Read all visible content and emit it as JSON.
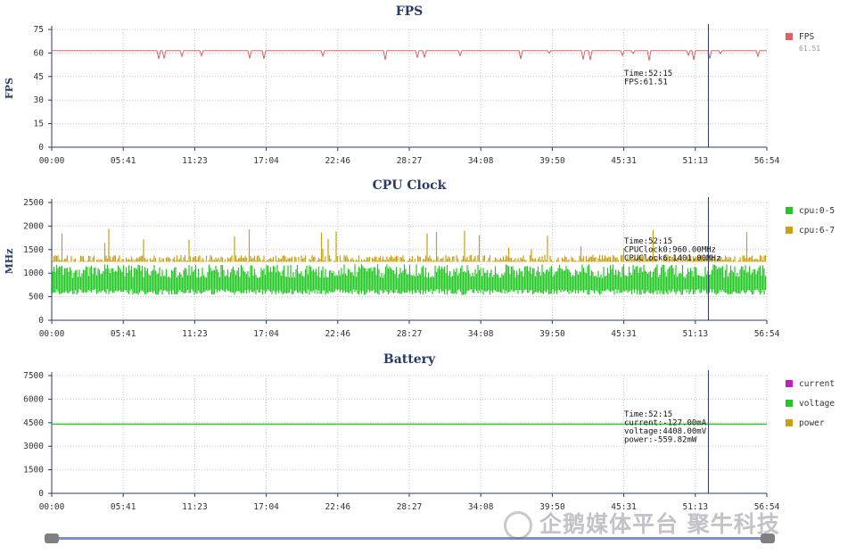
{
  "xticks": [
    "00:00",
    "05:41",
    "11:23",
    "17:04",
    "22:46",
    "28:27",
    "34:08",
    "39:50",
    "45:31",
    "51:13",
    "56:54"
  ],
  "colors": {
    "fps": "#e06060",
    "cpu05": "#22c822",
    "cpu67": "#c9a012",
    "current": "#c020c0",
    "voltage": "#22c822",
    "power": "#c9a012",
    "cursor": "#2b3a6b",
    "grid": "#c8c8c8",
    "axis": "#2b3a6b"
  },
  "cursor_time": "52:15",
  "chart_data": [
    {
      "type": "line",
      "title": "FPS",
      "ylabel": "FPS",
      "yticks": [
        "0",
        "15",
        "30",
        "45",
        "60",
        "75"
      ],
      "ylim": [
        0,
        75
      ],
      "xlim_seconds": [
        0,
        3414
      ],
      "series": [
        {
          "name": "FPS",
          "values_summary": "mostly 60, occasional dips to ~55"
        }
      ],
      "legend": [
        {
          "name": "FPS",
          "sub": "61.51"
        }
      ],
      "tooltip": [
        "Time:52:15",
        "FPS:61.51"
      ]
    },
    {
      "type": "bar",
      "title": "CPU Clock",
      "ylabel": "MHz",
      "yticks": [
        "0",
        "500",
        "1000",
        "1500",
        "2000",
        "2500"
      ],
      "ylim": [
        0,
        2500
      ],
      "series": [
        {
          "name": "cpu:0-5",
          "range": [
            540,
            1190
          ]
        },
        {
          "name": "cpu:6-7",
          "range": [
            1240,
            1960
          ]
        }
      ],
      "legend": [
        {
          "name": "cpu:0-5"
        },
        {
          "name": "cpu:6-7"
        }
      ],
      "tooltip": [
        "Time:52:15",
        "CPUClock0:960.00MHz",
        "CPUClock6:1401.00MHz"
      ]
    },
    {
      "type": "line",
      "title": "Battery",
      "ylabel": "",
      "yticks": [
        "0",
        "1500",
        "3000",
        "4500",
        "6000",
        "7500"
      ],
      "ylim": [
        0,
        7500
      ],
      "series": [
        {
          "name": "current",
          "values_summary": "-127.00mA"
        },
        {
          "name": "voltage",
          "values_summary": "constant ~4408"
        },
        {
          "name": "power",
          "values_summary": "-559.82mW"
        }
      ],
      "legend": [
        {
          "name": "current"
        },
        {
          "name": "voltage"
        },
        {
          "name": "power"
        }
      ],
      "tooltip": [
        "Time:52:15",
        "current:-127.00mA",
        "voltage:4408.00mV",
        "power:-559.82mW"
      ]
    }
  ],
  "watermark": "企鹅媒体平台 聚牛科技"
}
